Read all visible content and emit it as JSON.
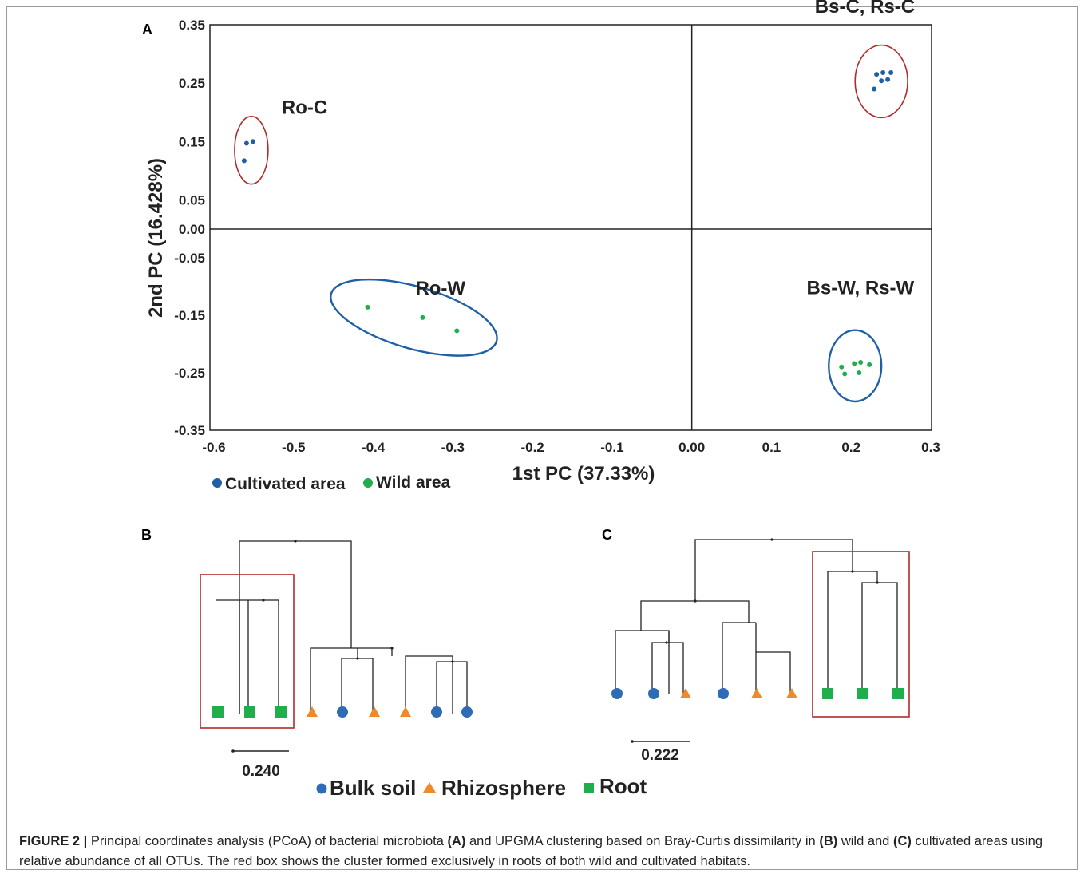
{
  "colors": {
    "cultivated": "#1f5fa6",
    "wild": "#1fae4b",
    "bulk_soil": "#2e6cb5",
    "rhizosphere": "#ee8a2e",
    "root": "#1fae4b",
    "highlight_red": "#b22a2a",
    "ellipse_blue": "#1f5fa6",
    "line": "#222222"
  },
  "panels": {
    "a": {
      "letter": "A"
    },
    "b": {
      "letter": "B",
      "scale_label": "0.240"
    },
    "c": {
      "letter": "C",
      "scale_label": "0.222"
    }
  },
  "chart_data": {
    "type": "scatter",
    "xlabel": "1st PC (37.33%)",
    "ylabel": "2nd PC (16.428%)",
    "xlim": [
      -0.6,
      0.3
    ],
    "ylim": [
      -0.35,
      0.35
    ],
    "x_ticks": [
      "-0.6",
      "-0.5",
      "-0.4",
      "-0.3",
      "-0.2",
      "-0.1",
      "0.00",
      "0.1",
      "0.2",
      "0.3"
    ],
    "y_ticks": [
      "0.35",
      "0.25",
      "0.15",
      "0.05",
      "0.00",
      "-0.05",
      "-0.15",
      "-0.25",
      "-0.35"
    ],
    "legend": [
      "Cultivated area",
      "Wild area"
    ],
    "series": [
      {
        "name": "Cultivated area",
        "points": [
          [
            -0.559,
            0.147
          ],
          [
            -0.551,
            0.15
          ],
          [
            -0.562,
            0.117
          ],
          [
            0.232,
            0.265
          ],
          [
            0.24,
            0.268
          ],
          [
            0.25,
            0.268
          ],
          [
            0.238,
            0.254
          ],
          [
            0.246,
            0.256
          ],
          [
            0.229,
            0.24
          ]
        ]
      },
      {
        "name": "Wild area",
        "points": [
          [
            -0.407,
            -0.136
          ],
          [
            -0.338,
            -0.154
          ],
          [
            -0.295,
            -0.177
          ],
          [
            0.188,
            -0.24
          ],
          [
            0.204,
            -0.234
          ],
          [
            0.212,
            -0.232
          ],
          [
            0.223,
            -0.236
          ],
          [
            0.192,
            -0.252
          ],
          [
            0.21,
            -0.25
          ]
        ]
      }
    ],
    "clusters": [
      {
        "label": "Ro-C",
        "group": "Cultivated area",
        "cx": -0.553,
        "cy": 0.135,
        "rx": 0.021,
        "ry": 0.058
      },
      {
        "label": "Bs-C, Rs-C",
        "group": "Cultivated area",
        "cx": 0.238,
        "cy": 0.253,
        "rx": 0.033,
        "ry": 0.062
      },
      {
        "label": "Ro-W",
        "group": "Wild area",
        "cx": -0.349,
        "cy": -0.154,
        "rx": 0.108,
        "ry": 0.054
      },
      {
        "label": "Bs-W, Rs-W",
        "group": "Wild area",
        "cx": 0.205,
        "cy": -0.238,
        "rx": 0.033,
        "ry": 0.062
      }
    ]
  },
  "dendrogram_legend": [
    "Bulk soil",
    "Rhizosphere",
    "Root"
  ],
  "dendrograms": {
    "b": {
      "leaves": [
        "Root",
        "Root",
        "Root",
        "Rhizosphere",
        "Bulk soil",
        "Rhizosphere",
        "Rhizosphere",
        "Bulk soil",
        "Bulk soil"
      ]
    },
    "c": {
      "leaves": [
        "Bulk soil",
        "Bulk soil",
        "Rhizosphere",
        "Bulk soil",
        "Rhizosphere",
        "Rhizosphere",
        "Root",
        "Root",
        "Root"
      ]
    }
  },
  "caption": {
    "label": "FIGURE 2 |",
    "t1": " Principal coordinates analysis (PCoA) of bacterial microbiota ",
    "r1": "(A)",
    "t2": " and UPGMA clustering based on Bray-Curtis dissimilarity in ",
    "r2": "(B)",
    "t3": " wild and ",
    "r3": "(C)",
    "t4": " cultivated areas using relative abundance of all OTUs. The red box shows the cluster formed exclusively in roots of both wild and cultivated habitats."
  }
}
